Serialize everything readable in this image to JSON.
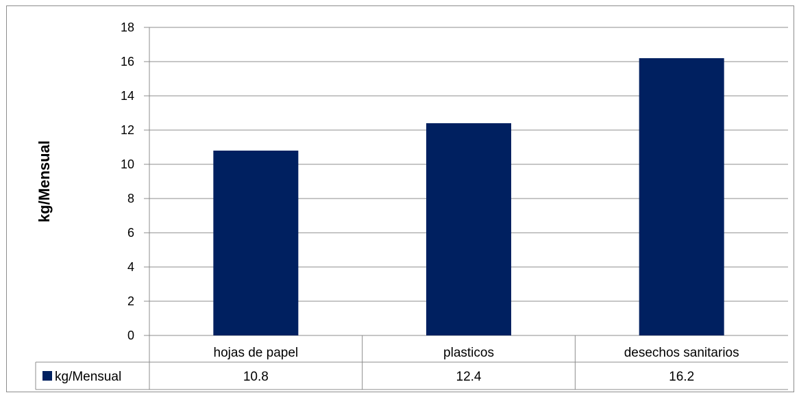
{
  "chart_data": {
    "type": "bar",
    "categories": [
      "hojas de papel",
      "plasticos",
      "desechos sanitarios"
    ],
    "series": [
      {
        "name": "kg/Mensual",
        "values": [
          10.8,
          12.4,
          16.2
        ]
      }
    ],
    "table_values": [
      "10.8",
      "12.4",
      "16.2"
    ],
    "title": "",
    "xlabel": "",
    "ylabel": "kg/Mensual",
    "ylim": [
      0,
      18
    ],
    "yticks": [
      0,
      2,
      4,
      6,
      8,
      10,
      12,
      14,
      16,
      18
    ],
    "grid": true,
    "legend": "data-table",
    "colors": {
      "bar": "#002060",
      "grid": "#8c8c8c",
      "frame": "#8c8c8c"
    }
  }
}
